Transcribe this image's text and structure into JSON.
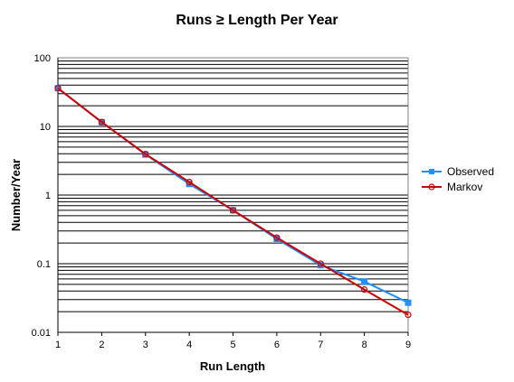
{
  "chart_data": {
    "type": "line",
    "title": "Runs ≥ Length Per Year",
    "xlabel": "Run Length",
    "ylabel": "Number/Year",
    "x": [
      1,
      2,
      3,
      4,
      5,
      6,
      7,
      8,
      9
    ],
    "x_ticks": [
      "1",
      "2",
      "3",
      "4",
      "5",
      "6",
      "7",
      "8",
      "9"
    ],
    "y_scale": "log",
    "ylim": [
      0.01,
      100
    ],
    "y_ticks": [
      "100",
      "10",
      "1",
      "0.1",
      "0.01"
    ],
    "grid": true,
    "legend_position": "right",
    "series": [
      {
        "name": "Observed",
        "color": "#1e90ff",
        "marker": "square",
        "values": [
          36,
          11.5,
          3.9,
          1.45,
          0.6,
          0.23,
          0.095,
          0.055,
          0.027
        ]
      },
      {
        "name": "Markov",
        "color": "#cc0000",
        "marker": "circle",
        "values": [
          36,
          11.6,
          3.95,
          1.55,
          0.6,
          0.24,
          0.1,
          0.042,
          0.018
        ]
      }
    ]
  }
}
